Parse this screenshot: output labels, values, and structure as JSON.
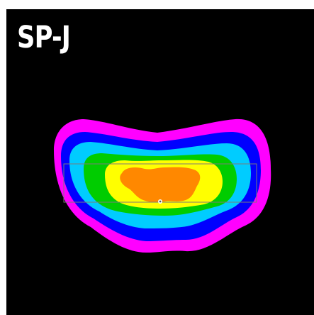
{
  "label": "SP-J",
  "colors": {
    "background": "#000000",
    "border": "#ffffff",
    "text": "#ffffff",
    "band_1": "#ff00ff",
    "band_2": "#0000ff",
    "band_3": "#00ccff",
    "band_4": "#00cc00",
    "band_5": "#ffff00",
    "band_6": "#ff8800"
  }
}
